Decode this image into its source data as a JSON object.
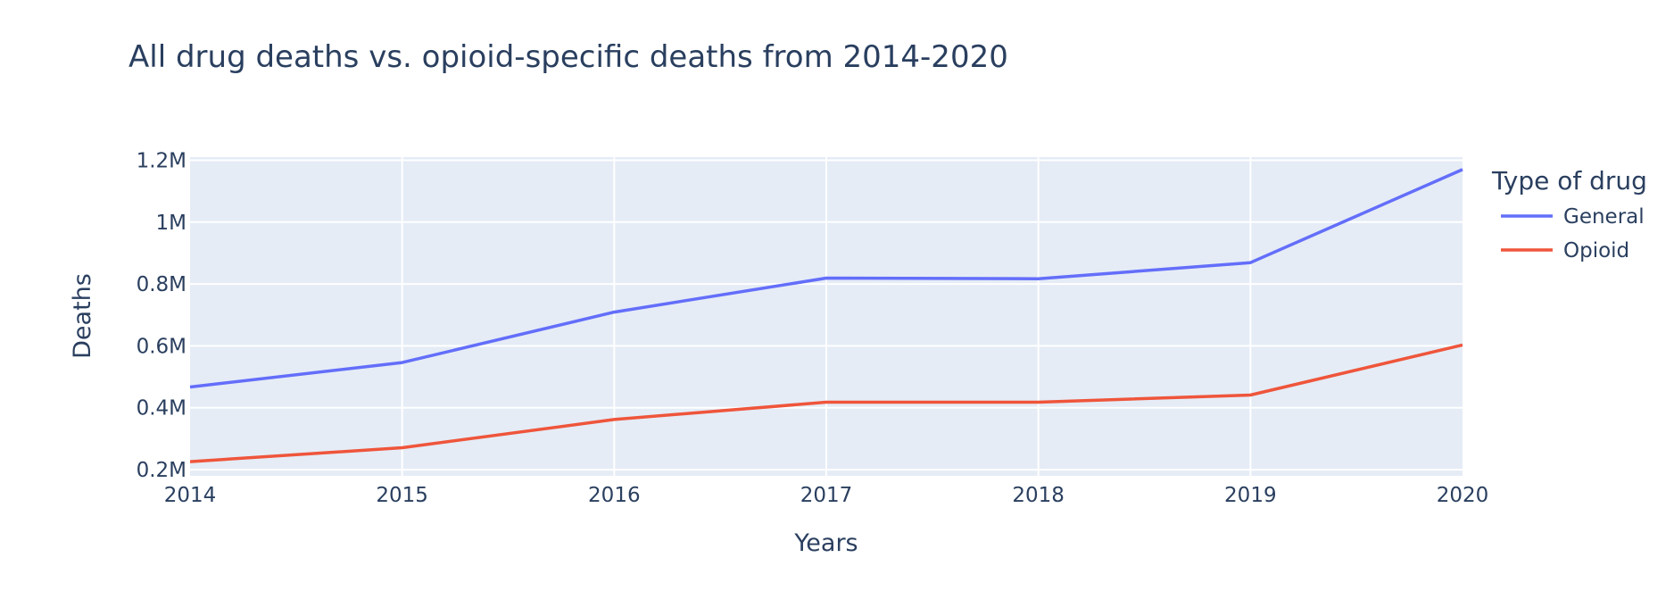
{
  "chart_data": {
    "type": "line",
    "title": "All drug deaths vs. opioid-specific deaths from 2014-2020",
    "xlabel": "Years",
    "ylabel": "Deaths",
    "x": [
      2014,
      2015,
      2016,
      2017,
      2018,
      2019,
      2020
    ],
    "x_tick_labels": [
      "2014",
      "2015",
      "2016",
      "2017",
      "2018",
      "2019",
      "2020"
    ],
    "y_ticks": [
      200000,
      400000,
      600000,
      800000,
      1000000,
      1200000
    ],
    "y_tick_labels": [
      "0.2M",
      "0.4M",
      "0.6M",
      "0.8M",
      "1M",
      "1.2M"
    ],
    "xlim": [
      2014,
      2020
    ],
    "ylim": [
      180000,
      1210000
    ],
    "grid": true,
    "legend": {
      "title": "Type of drug",
      "placement": "right"
    },
    "series": [
      {
        "name": "General",
        "color": "#636efa",
        "values": [
          467000,
          546000,
          709000,
          819000,
          817000,
          869000,
          1170000
        ]
      },
      {
        "name": "Opioid",
        "color": "#ef553b",
        "values": [
          226000,
          271000,
          362000,
          418000,
          418000,
          441000,
          603000
        ]
      }
    ]
  }
}
